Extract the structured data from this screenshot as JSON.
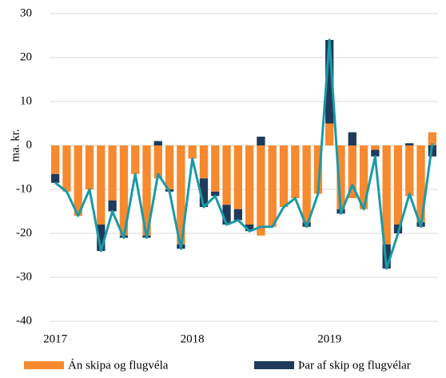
{
  "chart_data": {
    "type": "bar",
    "stacked": true,
    "ylabel": "ma. kr.",
    "categories": [
      "2017",
      null,
      null,
      null,
      null,
      null,
      null,
      null,
      null,
      null,
      null,
      null,
      "2018",
      null,
      null,
      null,
      null,
      null,
      null,
      null,
      null,
      null,
      null,
      null,
      "2019",
      null,
      null,
      null,
      null,
      null,
      null,
      null,
      null,
      null
    ],
    "series": [
      {
        "name": "Án skipa og flugvéla",
        "color": "#f7892e",
        "values": [
          -6.5,
          -10.5,
          -16,
          -10,
          -18,
          -12.5,
          -20.5,
          -6.5,
          -20.5,
          -7.5,
          -10,
          -22.5,
          -3,
          -7.5,
          -10.5,
          -13.5,
          -14.5,
          -18,
          -20.5,
          -18.5,
          -14,
          -12,
          -17.5,
          -11,
          5,
          -14.5,
          -12,
          -14.5,
          -1,
          -22.5,
          -18,
          -11.5,
          -17.5,
          3
        ]
      },
      {
        "name": "Þar af skip og flugvélar",
        "color": "#1f3a5a",
        "values": [
          -2,
          0,
          0,
          0,
          -6,
          -2.5,
          -0.5,
          0,
          -0.5,
          1,
          -0.5,
          -1,
          0,
          -6.5,
          -1,
          -4.5,
          -2.5,
          -1.5,
          2,
          0,
          0,
          0,
          -1,
          0,
          19,
          -1,
          3,
          0,
          -1.5,
          -5.5,
          -2,
          0.5,
          -1,
          -2.5
        ]
      }
    ],
    "line": {
      "color": "#1a9aa6",
      "values": [
        -8.5,
        -10.5,
        -16,
        -10,
        -24,
        -15,
        -21,
        -6.5,
        -21,
        -6.5,
        -10.5,
        -23.5,
        -3,
        -14,
        -11.5,
        -18,
        -17,
        -19.5,
        -18.5,
        -18.5,
        -14,
        -12,
        -18.5,
        -11,
        24,
        -15.5,
        -9,
        -14.5,
        -2.5,
        -28,
        -20,
        -11,
        -18.5,
        0.5
      ]
    },
    "ylim": [
      -40,
      30
    ],
    "yticks": [
      -40,
      -30,
      -20,
      -10,
      0,
      10,
      20,
      30
    ],
    "grid": true,
    "legend": "bottom"
  }
}
